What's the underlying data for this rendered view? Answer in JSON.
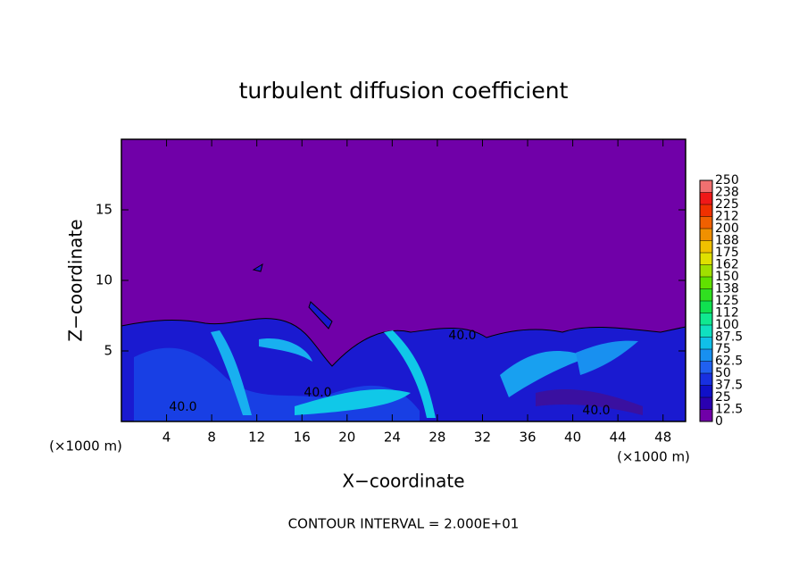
{
  "chart_data": {
    "type": "contour",
    "title": "turbulent diffusion coefficient",
    "x_label": "X−coordinate",
    "y_label": "Z−coordinate",
    "x_unit": "(×1000 m)",
    "xlim": [
      0,
      50
    ],
    "xticks": [
      4,
      8,
      12,
      16,
      20,
      24,
      28,
      32,
      36,
      40,
      44,
      48
    ],
    "ylim": [
      0,
      20
    ],
    "yticks": [
      5,
      10,
      15
    ],
    "contour_labels": [
      "40.0",
      "40.0",
      "40.0",
      "40.0"
    ],
    "annotation": "CONTOUR INTERVAL = 2.000E+01",
    "colorbar": {
      "levels": [
        0,
        12.5,
        25,
        37.5,
        50,
        62.5,
        75,
        87.5,
        100,
        112,
        125,
        138,
        150,
        162,
        175,
        188,
        200,
        212,
        225,
        238,
        250
      ],
      "colors": [
        "#7000a8",
        "#2a00b0",
        "#1010c8",
        "#1830e0",
        "#2060f0",
        "#1890f0",
        "#10c0e8",
        "#10e0c0",
        "#10e890",
        "#10e050",
        "#30e020",
        "#60e000",
        "#a0e000",
        "#e0e000",
        "#f0c000",
        "#f09000",
        "#f06000",
        "#f03000",
        "#f01818",
        "#f07070"
      ]
    }
  }
}
